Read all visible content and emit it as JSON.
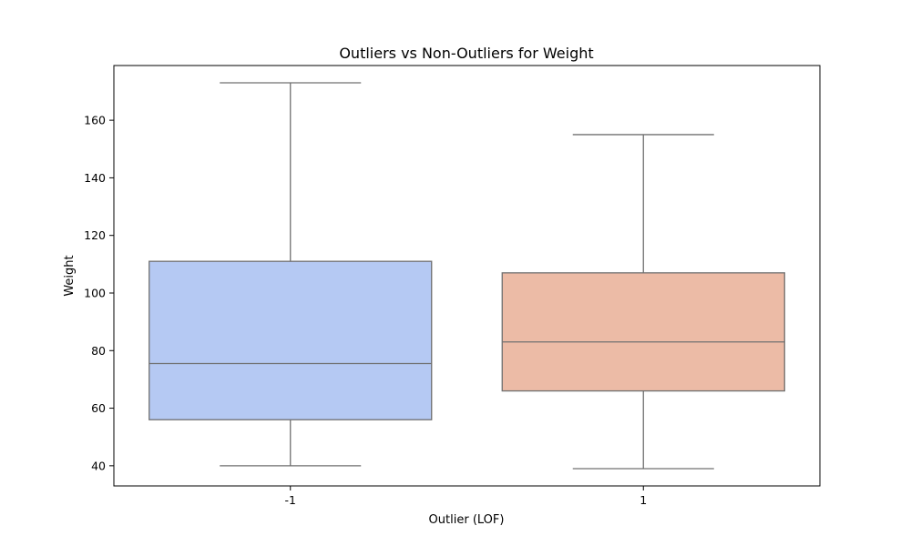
{
  "chart_data": {
    "type": "box",
    "title": "Outliers vs Non-Outliers for Weight",
    "xlabel": "Outlier (LOF)",
    "ylabel": "Weight",
    "categories": [
      "-1",
      "1"
    ],
    "ylim": [
      33,
      179
    ],
    "yticks": [
      40,
      60,
      80,
      100,
      120,
      140,
      160
    ],
    "grid": false,
    "boxes": [
      {
        "category": "-1",
        "whisker_low": 40,
        "q1": 56,
        "median": 75.5,
        "q3": 111,
        "whisker_high": 173,
        "color": "#b5c9f3"
      },
      {
        "category": "1",
        "whisker_low": 39,
        "q1": 66,
        "median": 83,
        "q3": 107,
        "whisker_high": 155,
        "color": "#ecbba6"
      }
    ],
    "line_color": "#707070",
    "frame_color": "#000000"
  }
}
